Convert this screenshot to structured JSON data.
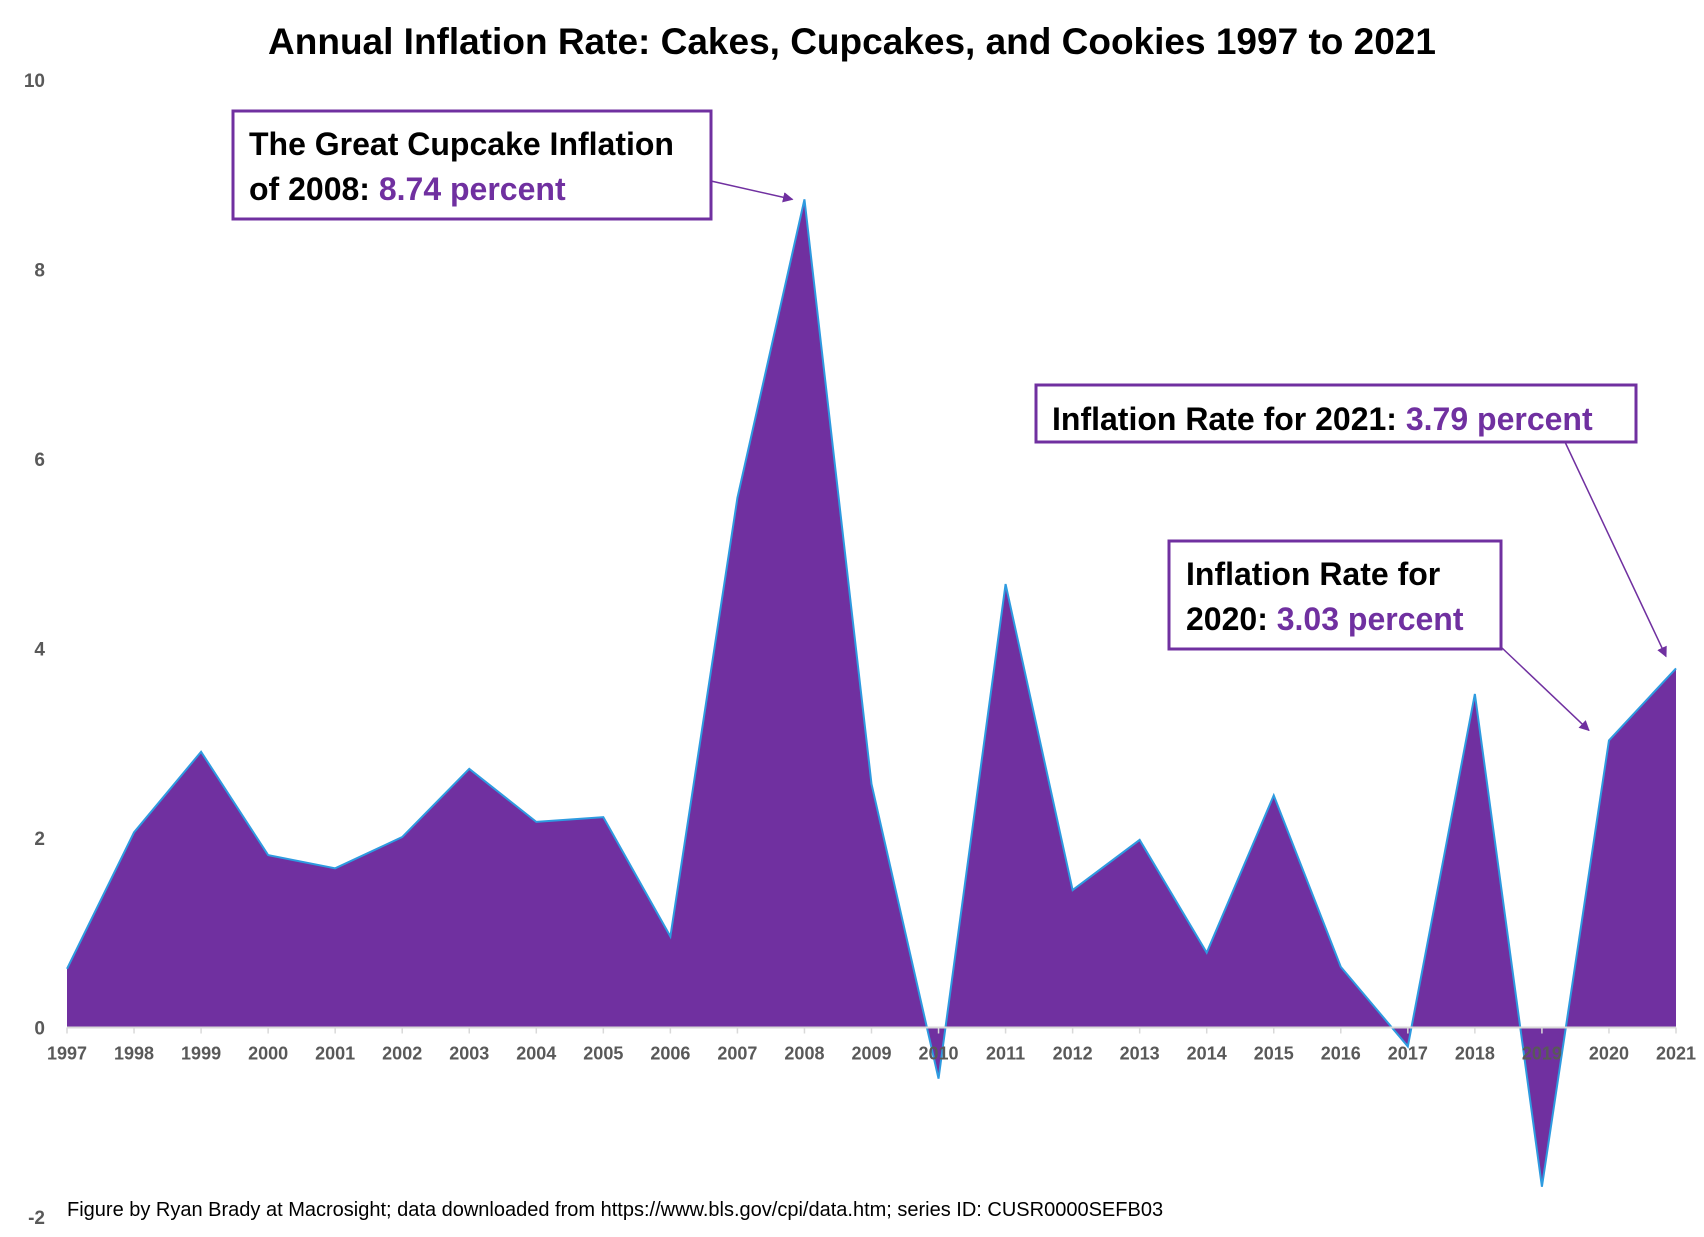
{
  "chart_data": {
    "type": "area",
    "title": "Annual Inflation Rate: Cakes, Cupcakes, and Cookies 1997 to 2021",
    "xlabel": "",
    "ylabel": "",
    "ylim": [
      -2,
      10
    ],
    "yticks": [
      "10",
      "8",
      "6",
      "4",
      "2",
      "0",
      "-2"
    ],
    "categories": [
      "1997",
      "1998",
      "1999",
      "2000",
      "2001",
      "2002",
      "2003",
      "2004",
      "2005",
      "2006",
      "2007",
      "2008",
      "2009",
      "2010",
      "2011",
      "2012",
      "2013",
      "2014",
      "2015",
      "2016",
      "2017",
      "2018",
      "2019",
      "2020",
      "2021"
    ],
    "values": [
      0.62,
      2.06,
      2.91,
      1.82,
      1.68,
      2.01,
      2.73,
      2.17,
      2.22,
      0.96,
      5.59,
      8.74,
      2.57,
      -0.54,
      4.68,
      1.45,
      1.98,
      0.79,
      2.45,
      0.64,
      -0.2,
      3.52,
      -1.68,
      3.03,
      3.79
    ],
    "grid": false,
    "legend": "none",
    "colors": {
      "fill": "#7030A0",
      "stroke": "#2E9BE0",
      "axis": "#D9D9D9",
      "tick_text": "#595959",
      "box_border": "#7030A0"
    },
    "annotations": [
      {
        "id": "ann-2008",
        "lines": [
          [
            {
              "text": "The Great Cupcake Inflation",
              "accent": false
            }
          ],
          [
            {
              "text": "of 2008: ",
              "accent": false
            },
            {
              "text": "8.74 percent",
              "accent": true
            }
          ]
        ],
        "target_category": "2008"
      },
      {
        "id": "ann-2021",
        "lines": [
          [
            {
              "text": "Inflation Rate for 2021: ",
              "accent": false
            },
            {
              "text": "3.79 percent",
              "accent": true
            }
          ]
        ],
        "target_category": "2021"
      },
      {
        "id": "ann-2020",
        "lines": [
          [
            {
              "text": "Inflation Rate for",
              "accent": false
            }
          ],
          [
            {
              "text": "2020: ",
              "accent": false
            },
            {
              "text": "3.03 percent",
              "accent": true
            }
          ]
        ],
        "target_category": "2020"
      }
    ],
    "source": "Figure by Ryan Brady at Macrosight; data downloaded from https://www.bls.gov/cpi/data.htm; series ID: CUSR0000SEFB03"
  }
}
